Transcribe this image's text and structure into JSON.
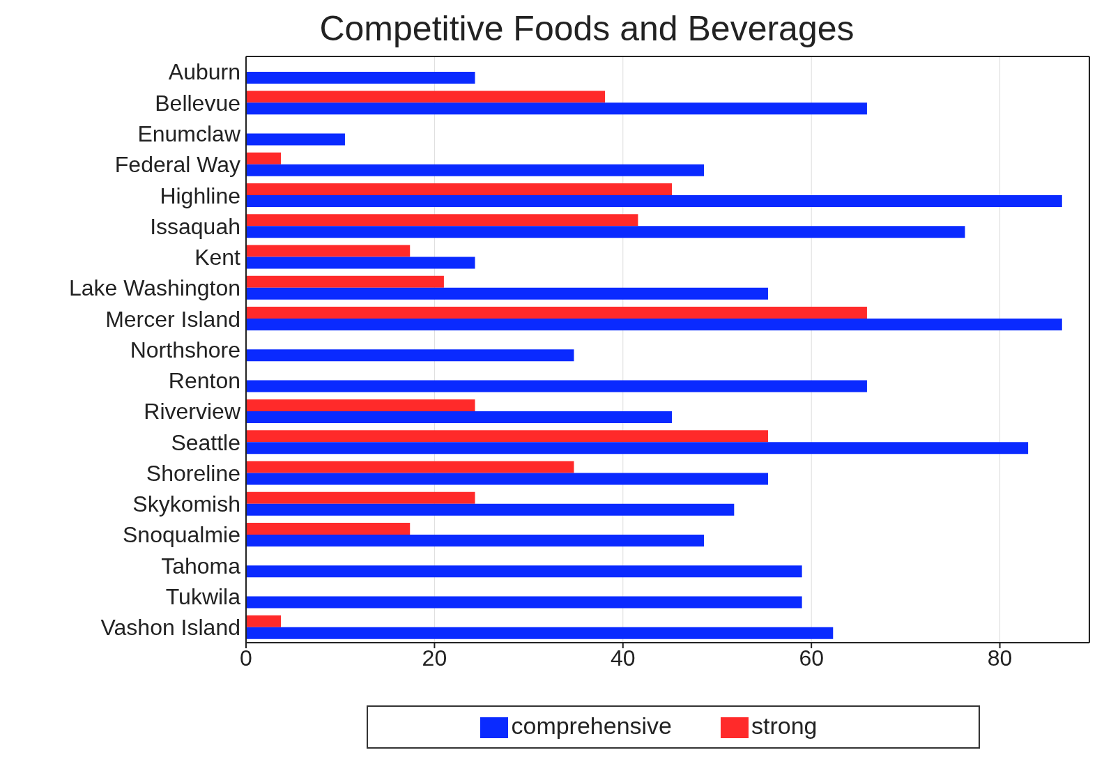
{
  "chart_data": {
    "type": "bar",
    "orientation": "horizontal",
    "title": "Competitive  Foods and Beverages",
    "categories": [
      "Auburn",
      "Bellevue",
      "Enumclaw",
      "Federal Way",
      "Highline",
      "Issaquah",
      "Kent",
      "Lake Washington",
      "Mercer Island",
      "Northshore",
      "Renton",
      "Riverview",
      "Seattle",
      "Shoreline",
      "Skykomish",
      "Snoqualmie",
      "Tahoma",
      "Tukwila",
      "Vashon Island"
    ],
    "series": [
      {
        "name": "strong",
        "color": "#ff2a2a",
        "values": [
          null,
          38.1,
          null,
          3.7,
          45.2,
          41.6,
          17.4,
          21.0,
          65.9,
          null,
          null,
          24.3,
          55.4,
          34.8,
          24.3,
          17.4,
          null,
          null,
          3.7
        ]
      },
      {
        "name": "comprehensive",
        "color": "#0a2aff",
        "values": [
          24.3,
          65.9,
          10.5,
          48.6,
          86.6,
          76.3,
          24.3,
          55.4,
          86.6,
          34.8,
          65.9,
          45.2,
          83.0,
          55.4,
          51.8,
          48.6,
          59.0,
          59.0,
          62.3
        ]
      }
    ],
    "xlim": [
      0,
      89.5
    ],
    "xticks": [
      0,
      20,
      40,
      60,
      80
    ],
    "grid": "x",
    "legend": "bottom"
  }
}
